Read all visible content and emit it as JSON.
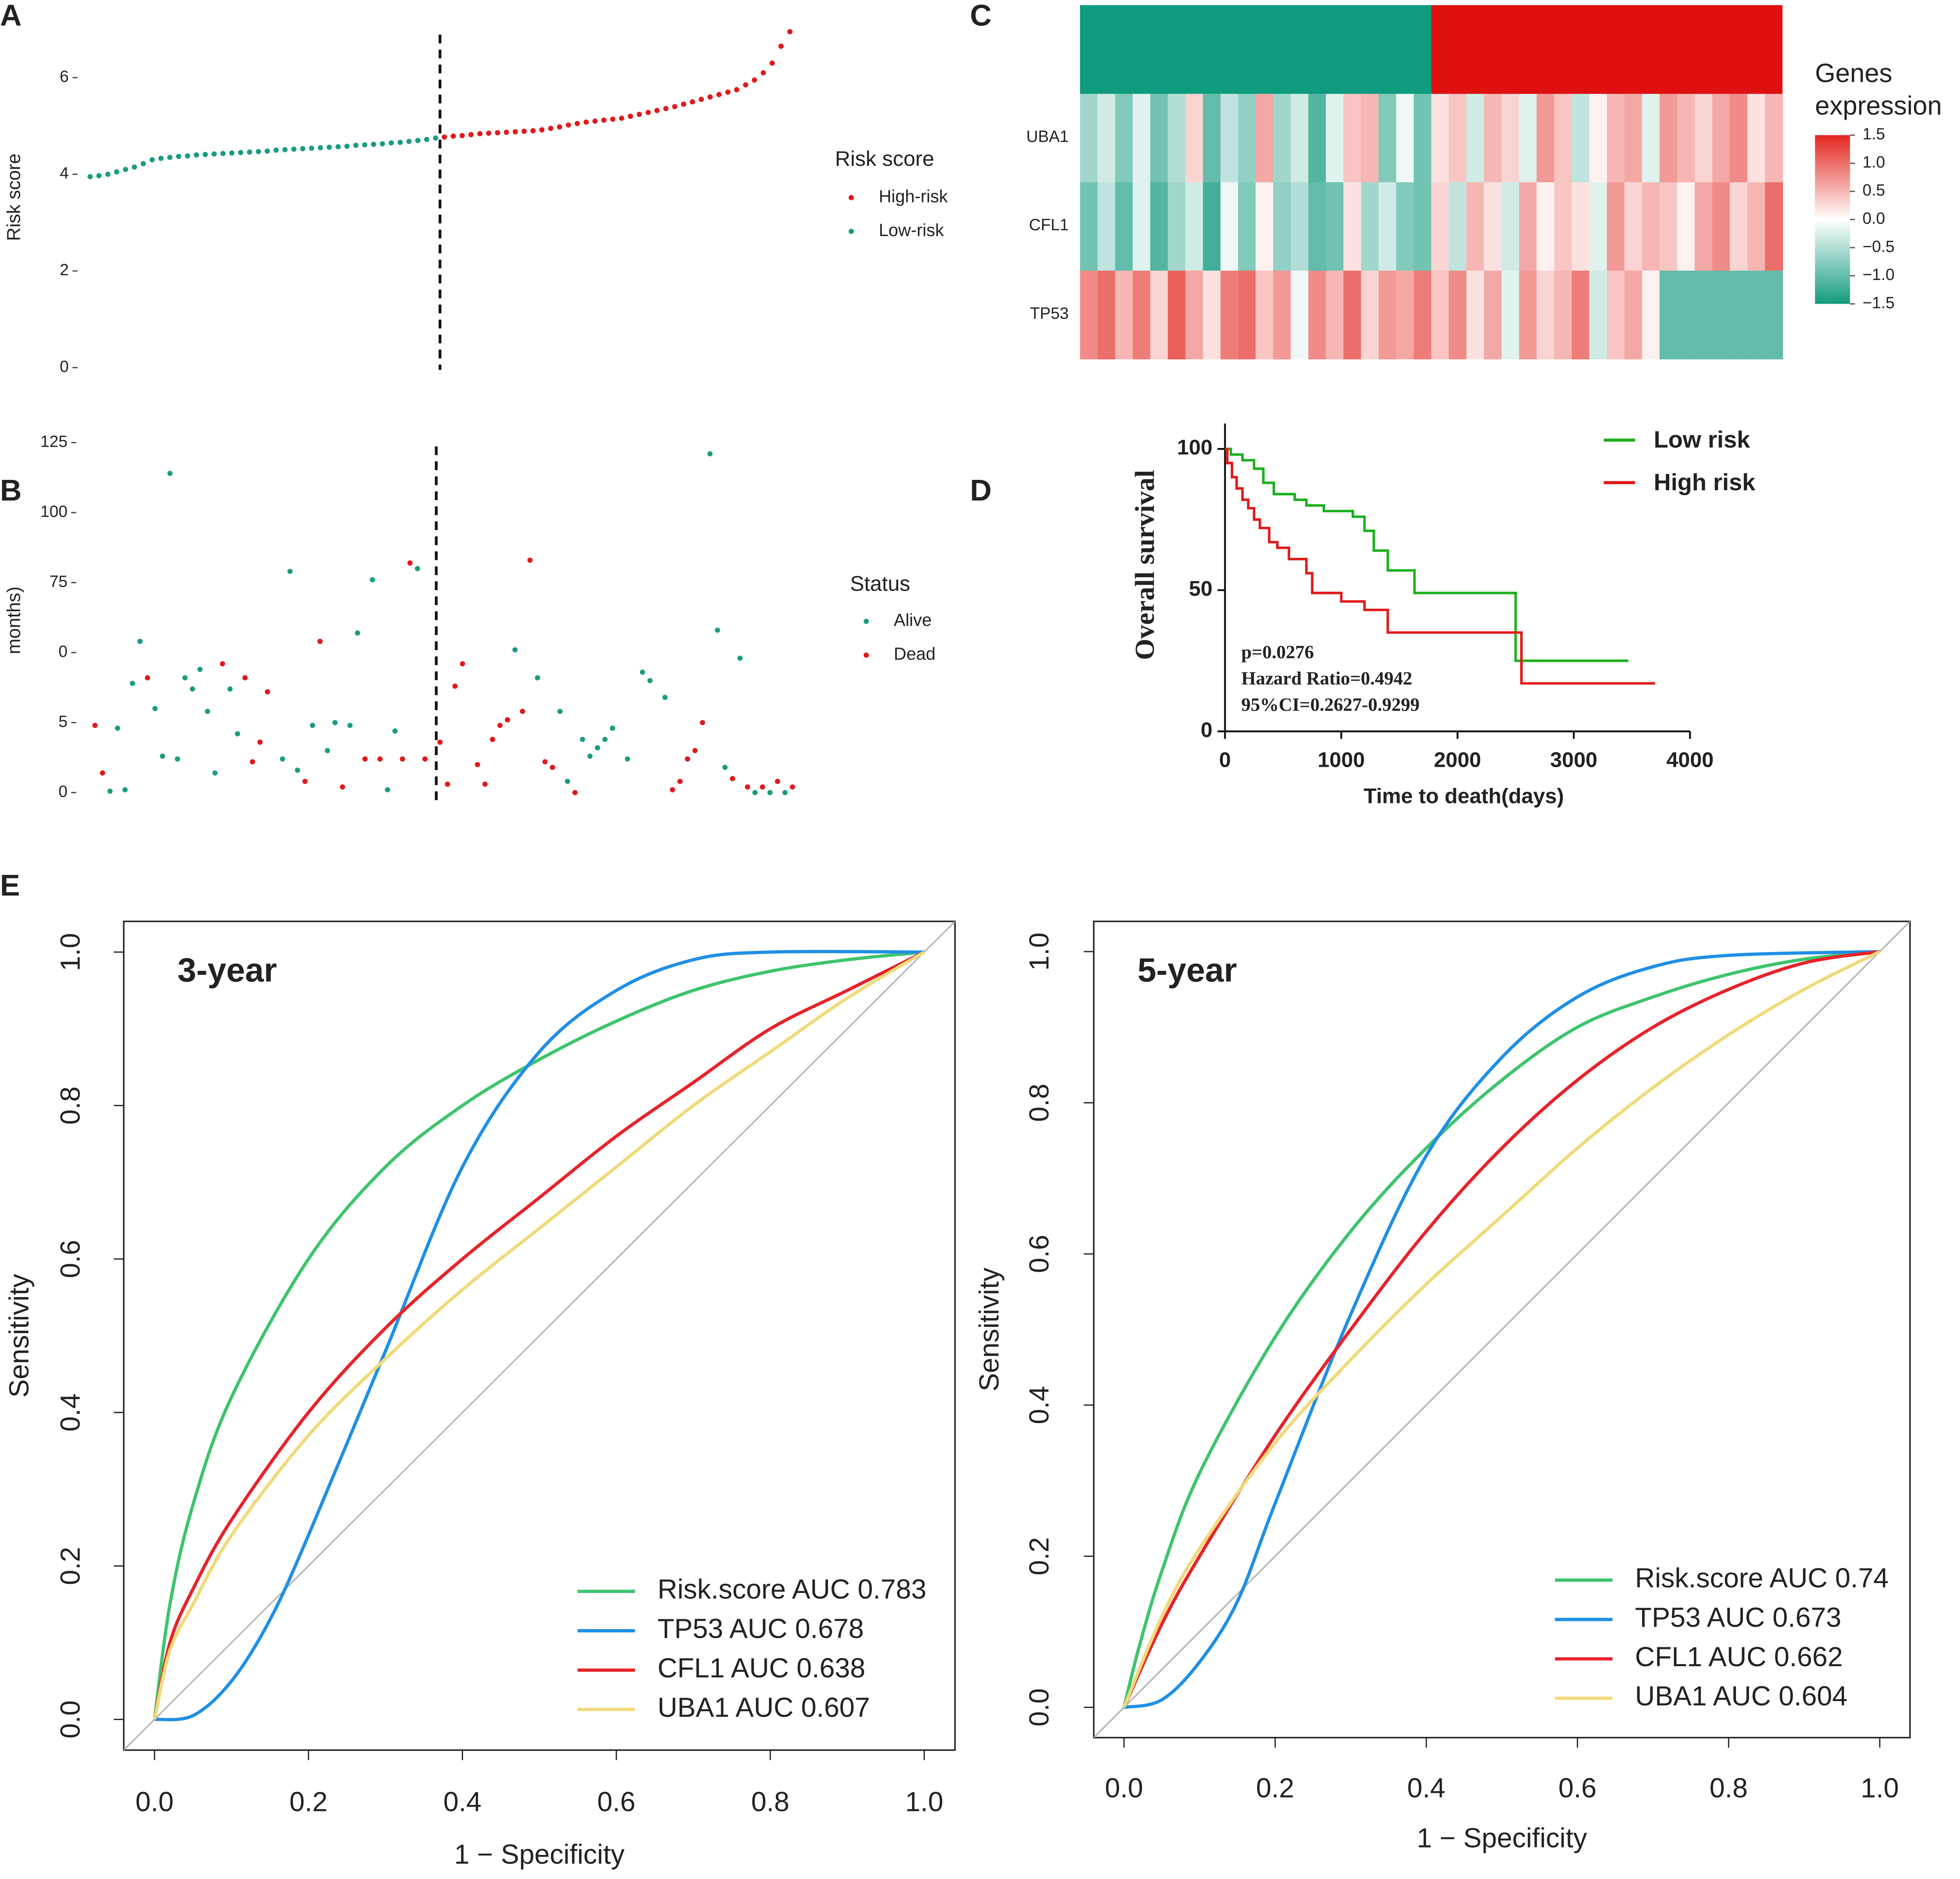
{
  "chart_data": [
    {
      "type": "scatter",
      "label": "A",
      "ylabel": "Risk score",
      "ylim": [
        -0.15,
        7.2
      ],
      "yticks": [
        0,
        2,
        4,
        6
      ],
      "xlim": [
        0,
        81
      ],
      "vline": 40.5,
      "legend_title": "Risk score",
      "series": [
        {
          "name": "High-risk",
          "color": "#e0191b",
          "x": [
            41,
            42,
            43,
            44,
            45,
            46,
            47,
            48,
            49,
            50,
            51,
            52,
            53,
            54,
            55,
            56,
            57,
            58,
            59,
            60,
            61,
            62,
            63,
            64,
            65,
            66,
            67,
            68,
            69,
            70,
            71,
            72,
            73,
            74,
            75,
            76,
            77,
            78,
            79,
            80
          ],
          "values": [
            4.77,
            4.79,
            4.8,
            4.82,
            4.84,
            4.85,
            4.86,
            4.87,
            4.88,
            4.89,
            4.9,
            4.92,
            4.95,
            4.98,
            5.02,
            5.05,
            5.08,
            5.1,
            5.12,
            5.14,
            5.16,
            5.2,
            5.24,
            5.28,
            5.32,
            5.36,
            5.4,
            5.45,
            5.5,
            5.55,
            5.6,
            5.65,
            5.7,
            5.75,
            5.85,
            5.95,
            6.1,
            6.3,
            6.65,
            6.95
          ]
        },
        {
          "name": "Low-risk",
          "color": "#1a9c82",
          "x": [
            1,
            2,
            3,
            4,
            5,
            6,
            7,
            8,
            9,
            10,
            11,
            12,
            13,
            14,
            15,
            16,
            17,
            18,
            19,
            20,
            21,
            22,
            23,
            24,
            25,
            26,
            27,
            28,
            29,
            30,
            31,
            32,
            33,
            34,
            35,
            36,
            37,
            38,
            39,
            40
          ],
          "values": [
            3.95,
            3.97,
            4.0,
            4.05,
            4.1,
            4.15,
            4.22,
            4.3,
            4.33,
            4.35,
            4.37,
            4.38,
            4.4,
            4.41,
            4.42,
            4.43,
            4.44,
            4.45,
            4.46,
            4.47,
            4.48,
            4.5,
            4.51,
            4.52,
            4.53,
            4.54,
            4.55,
            4.56,
            4.57,
            4.58,
            4.6,
            4.61,
            4.62,
            4.63,
            4.65,
            4.66,
            4.68,
            4.7,
            4.72,
            4.75
          ]
        }
      ]
    },
    {
      "type": "scatter",
      "label": "B",
      "ylabel": "months)",
      "ylim": [
        -6,
        129
      ],
      "yticks": [
        {
          "value": 0,
          "label": "0"
        },
        {
          "value": 25,
          "label": "5"
        },
        {
          "value": 50,
          "label": "0"
        },
        75,
        100,
        125
      ],
      "xlim": [
        0,
        96
      ],
      "vline": 47.5,
      "legend_title": "Status",
      "series": [
        {
          "name": "Alive",
          "color": "#1a9c82",
          "x": [
            4,
            5,
            6,
            7,
            8,
            10,
            11,
            12,
            13,
            14,
            15,
            16,
            17,
            18,
            20,
            21,
            27,
            28,
            29,
            31,
            33,
            34,
            36,
            37,
            39,
            41,
            42,
            45,
            58,
            61,
            64,
            65,
            67,
            68,
            69,
            70,
            71,
            73,
            75,
            76,
            78,
            84,
            85,
            86,
            88,
            90,
            92,
            94
          ],
          "values": [
            0.5,
            23,
            1,
            39,
            54,
            30,
            13,
            114,
            12,
            41,
            37,
            44,
            29,
            7,
            37,
            21,
            12,
            79,
            8,
            24,
            15,
            25,
            24,
            57,
            76,
            1,
            22,
            80,
            51,
            41,
            29,
            4,
            19,
            13,
            16,
            19,
            23,
            12,
            43,
            40,
            34,
            121,
            58,
            9,
            48,
            0,
            0,
            0
          ]
        },
        {
          "name": "Dead",
          "color": "#e0191b",
          "x": [
            2,
            3,
            9,
            19,
            22,
            23,
            24,
            25,
            30,
            32,
            35,
            38,
            40,
            43,
            44,
            46,
            48,
            49,
            50,
            51,
            53,
            54,
            55,
            56,
            57,
            59,
            60,
            62,
            63,
            66,
            79,
            80,
            81,
            82,
            83,
            87,
            89,
            91,
            93,
            95
          ],
          "values": [
            24,
            7,
            41,
            46,
            41,
            11,
            18,
            36,
            4,
            54,
            2,
            12,
            12,
            12,
            82,
            12,
            18,
            3,
            38,
            46,
            10,
            3,
            19,
            24,
            26,
            29,
            83,
            11,
            9,
            0,
            1,
            4,
            12,
            15,
            25,
            5,
            2,
            2,
            4,
            2
          ]
        }
      ]
    },
    {
      "type": "heatmap",
      "label": "C",
      "group_split": 20,
      "group_colors": [
        "#0e9b7e",
        "#de1010"
      ],
      "legend_title_lines": [
        "Genes",
        "expression"
      ],
      "colorbar_ticks": [
        {
          "value": 1.5,
          "label": "1.5"
        },
        {
          "value": 1,
          "label": "1.0"
        },
        {
          "value": 0.5,
          "label": "0.5"
        },
        {
          "value": 0,
          "label": "0.0"
        },
        {
          "value": -0.5,
          "label": "−0.5"
        },
        {
          "value": -1,
          "label": "−1.0"
        },
        {
          "value": -1.5,
          "label": "−1.5"
        }
      ],
      "rows": [
        {
          "name": "UBA1",
          "values": [
            -0.6,
            -0.3,
            -0.8,
            -0.2,
            -0.9,
            -0.5,
            0.3,
            -1.0,
            -0.4,
            -0.7,
            0.6,
            -0.6,
            -0.3,
            -1.1,
            -0.2,
            0.4,
            0.5,
            -0.8,
            -0.1,
            -0.9,
            0.2,
            0.4,
            -0.3,
            0.5,
            0.3,
            -0.2,
            0.7,
            0.4,
            -0.4,
            0.1,
            0.5,
            0.6,
            -0.2,
            0.7,
            0.5,
            0.3,
            0.6,
            0.8,
            0.2,
            0.5
          ]
        },
        {
          "name": "CFL1",
          "values": [
            -0.9,
            -0.4,
            -1.0,
            -0.2,
            -1.1,
            -0.6,
            -0.3,
            -1.2,
            -0.1,
            -0.8,
            0.1,
            -0.7,
            -0.5,
            -1.0,
            -0.9,
            0.2,
            -0.6,
            -0.3,
            -0.8,
            -0.9,
            0.3,
            -0.4,
            0.5,
            0.2,
            -0.3,
            0.6,
            0.1,
            0.4,
            0.2,
            -0.2,
            0.7,
            0.3,
            0.5,
            0.4,
            0.1,
            0.6,
            0.8,
            0.3,
            0.5,
            1.0
          ]
        },
        {
          "name": "TP53",
          "values": [
            0.8,
            1.0,
            0.5,
            0.9,
            0.3,
            1.1,
            0.6,
            0.2,
            0.9,
            1.0,
            0.4,
            0.7,
            -0.1,
            0.8,
            0.5,
            1.0,
            0.3,
            0.7,
            0.6,
            0.9,
            0.4,
            0.8,
            0.2,
            0.6,
            -0.2,
            0.7,
            0.3,
            0.5,
            0.9,
            -0.3,
            0.4,
            0.6,
            0.1,
            -1.0,
            -1.0,
            -1.0,
            -1.0,
            -1.0,
            -1.0,
            -1.0
          ]
        }
      ]
    },
    {
      "type": "survival",
      "label": "D",
      "xlabel": "Time to death(days)",
      "ylabel": "Overall survival",
      "xlim": [
        0,
        4000
      ],
      "xticks": [
        0,
        1000,
        2000,
        3000,
        4000
      ],
      "ylim": [
        0,
        109
      ],
      "yticks": [
        0,
        50,
        100
      ],
      "annotations": [
        "p=0.0276",
        "Hazard Ratio=0.4942",
        "95%CI=0.2627-0.9299"
      ],
      "series": [
        {
          "name": "Low risk",
          "color": "#1db01d",
          "x": [
            0,
            50,
            150,
            250,
            330,
            420,
            600,
            700,
            850,
            1100,
            1200,
            1280,
            1400,
            1630,
            2500,
            3470
          ],
          "values": [
            100,
            98,
            96,
            93,
            88,
            84,
            82,
            80,
            78,
            76,
            71,
            64,
            57,
            49,
            25,
            25
          ]
        },
        {
          "name": "High risk",
          "color": "#e01a1a",
          "x": [
            0,
            20,
            60,
            100,
            150,
            200,
            250,
            300,
            380,
            450,
            550,
            700,
            750,
            1000,
            1200,
            1400,
            2550,
            3700
          ],
          "values": [
            100,
            95,
            90,
            86,
            82,
            79,
            75,
            72,
            67,
            65,
            61,
            56,
            49,
            46,
            43,
            35,
            17,
            17
          ]
        }
      ]
    },
    {
      "type": "roc",
      "label": "E",
      "title": "3-year",
      "xlabel": "1 − Specificity",
      "ylabel": "Sensitivity",
      "xlim": [
        -0.04,
        1.04
      ],
      "ylim": [
        -0.04,
        1.04
      ],
      "xticks": [
        {
          "value": 0,
          "label": "0.0"
        },
        0.2,
        0.4,
        0.6,
        0.8,
        {
          "value": 1,
          "label": "1.0"
        }
      ],
      "yticks": [
        {
          "value": 0,
          "label": "0.0"
        },
        0.2,
        0.4,
        0.6,
        0.8,
        {
          "value": 1,
          "label": "1.0"
        }
      ],
      "series": [
        {
          "name": "Risk.score AUC 0.783",
          "color": "#3ec46d",
          "x": [
            0,
            0.02,
            0.05,
            0.1,
            0.2,
            0.3,
            0.4,
            0.5,
            0.6,
            0.7,
            0.8,
            0.9,
            1
          ],
          "values": [
            0,
            0.15,
            0.28,
            0.42,
            0.6,
            0.72,
            0.8,
            0.86,
            0.91,
            0.95,
            0.975,
            0.99,
            1
          ]
        },
        {
          "name": "TP53 AUC 0.678",
          "color": "#1f8fe6",
          "x": [
            0,
            0.05,
            0.1,
            0.15,
            0.2,
            0.3,
            0.4,
            0.5,
            0.6,
            0.7,
            0.8,
            1
          ],
          "values": [
            0,
            0.005,
            0.05,
            0.13,
            0.24,
            0.48,
            0.72,
            0.87,
            0.95,
            0.99,
            1,
            1
          ]
        },
        {
          "name": "CFL1 AUC 0.638",
          "color": "#e8222a",
          "x": [
            0,
            0.02,
            0.05,
            0.1,
            0.2,
            0.3,
            0.4,
            0.5,
            0.6,
            0.7,
            0.8,
            0.9,
            1
          ],
          "values": [
            0,
            0.1,
            0.17,
            0.26,
            0.4,
            0.51,
            0.6,
            0.68,
            0.76,
            0.83,
            0.9,
            0.95,
            1
          ]
        },
        {
          "name": "UBA1 AUC 0.607",
          "color": "#f0da7a",
          "x": [
            0,
            0.02,
            0.05,
            0.1,
            0.2,
            0.3,
            0.4,
            0.5,
            0.6,
            0.7,
            0.8,
            0.9,
            1
          ],
          "values": [
            0,
            0.09,
            0.15,
            0.24,
            0.37,
            0.47,
            0.56,
            0.64,
            0.72,
            0.8,
            0.87,
            0.94,
            1
          ]
        }
      ]
    },
    {
      "type": "roc",
      "title": "5-year",
      "xlabel": "1 − Specificity",
      "ylabel": "Sensitivity",
      "xlim": [
        -0.04,
        1.04
      ],
      "ylim": [
        -0.04,
        1.04
      ],
      "xticks": [
        {
          "value": 0,
          "label": "0.0"
        },
        0.2,
        0.4,
        0.6,
        0.8,
        {
          "value": 1,
          "label": "1.0"
        }
      ],
      "yticks": [
        {
          "value": 0,
          "label": "0.0"
        },
        0.2,
        0.4,
        0.6,
        0.8,
        {
          "value": 1,
          "label": "1.0"
        }
      ],
      "series": [
        {
          "name": "Risk.score AUC 0.74",
          "color": "#3ec46d",
          "x": [
            0,
            0.02,
            0.05,
            0.1,
            0.2,
            0.3,
            0.4,
            0.5,
            0.6,
            0.7,
            0.8,
            0.9,
            1
          ],
          "values": [
            0,
            0.08,
            0.18,
            0.31,
            0.49,
            0.63,
            0.74,
            0.83,
            0.9,
            0.94,
            0.97,
            0.99,
            1
          ]
        },
        {
          "name": "TP53 AUC 0.673",
          "color": "#1f8fe6",
          "x": [
            0,
            0.05,
            0.1,
            0.15,
            0.2,
            0.3,
            0.4,
            0.5,
            0.6,
            0.7,
            0.8,
            1
          ],
          "values": [
            0,
            0.01,
            0.06,
            0.14,
            0.27,
            0.52,
            0.73,
            0.86,
            0.94,
            0.98,
            0.995,
            1
          ]
        },
        {
          "name": "CFL1 AUC 0.662",
          "color": "#e8222a",
          "x": [
            0,
            0.05,
            0.1,
            0.2,
            0.3,
            0.4,
            0.5,
            0.6,
            0.7,
            0.8,
            0.9,
            1
          ],
          "values": [
            0,
            0.11,
            0.2,
            0.36,
            0.5,
            0.63,
            0.74,
            0.83,
            0.9,
            0.95,
            0.985,
            1
          ]
        },
        {
          "name": "UBA1 AUC 0.604",
          "color": "#f0da7a",
          "x": [
            0,
            0.05,
            0.1,
            0.2,
            0.3,
            0.4,
            0.5,
            0.6,
            0.7,
            0.8,
            0.9,
            1
          ],
          "values": [
            0,
            0.12,
            0.21,
            0.35,
            0.46,
            0.56,
            0.65,
            0.74,
            0.82,
            0.89,
            0.95,
            1
          ]
        }
      ]
    }
  ]
}
